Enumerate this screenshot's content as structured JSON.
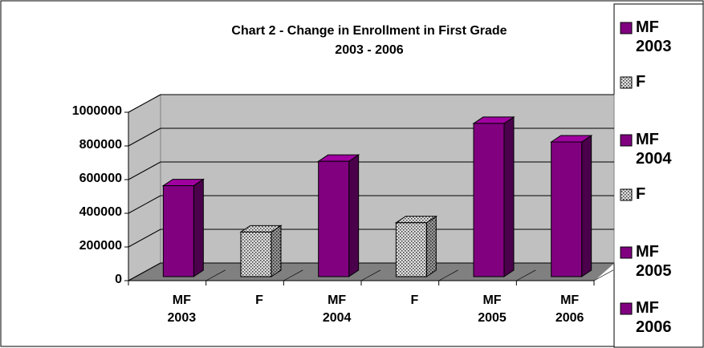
{
  "chart_data": {
    "type": "bar3d",
    "title": "Chart 2 - Change in Enrollment in First Grade",
    "subtitle": "2003 - 2006",
    "categories": [
      "MF 2003",
      "F",
      "MF 2004",
      "F",
      "MF 2005",
      "MF 2006"
    ],
    "values": [
      540000,
      265000,
      685000,
      320000,
      910000,
      800000
    ],
    "colors": [
      "#800080",
      "#c0c0c0",
      "#800080",
      "#c0c0c0",
      "#800080",
      "#800080"
    ],
    "hatch": [
      false,
      true,
      false,
      true,
      false,
      false
    ],
    "ylim": [
      0,
      1000000
    ],
    "yticks": [
      0,
      200000,
      400000,
      600000,
      800000,
      1000000
    ],
    "grid": true,
    "legend": "right"
  }
}
